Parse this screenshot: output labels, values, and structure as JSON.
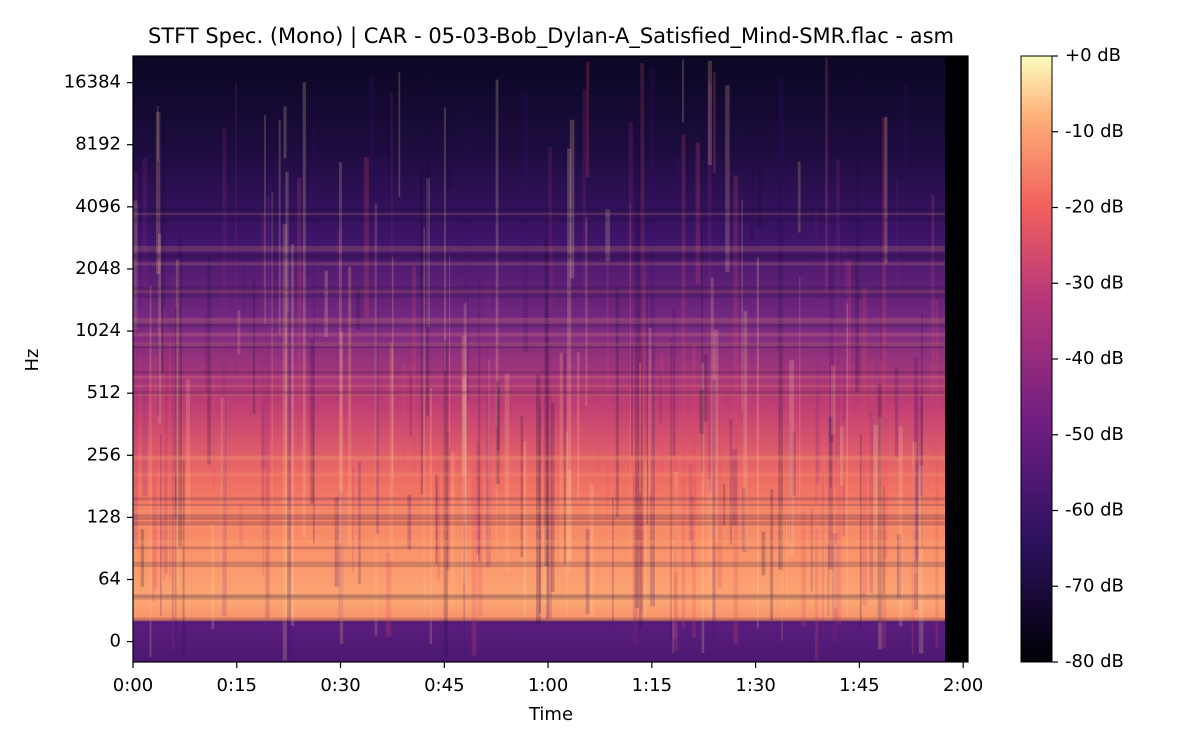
{
  "chart_data": {
    "type": "spectrogram",
    "title": "STFT Spec. (Mono) | CAR - 05-03-Bob_Dylan-A_Satisfied_Mind-SMR.flac - asm",
    "x_label": "Time",
    "y_label": "Hz",
    "xlim": [
      0,
      120.7
    ],
    "xticks": [
      {
        "value": 0,
        "label": "0:00"
      },
      {
        "value": 15,
        "label": "0:15"
      },
      {
        "value": 30,
        "label": "0:30"
      },
      {
        "value": 45,
        "label": "0:45"
      },
      {
        "value": 60,
        "label": "1:00"
      },
      {
        "value": 75,
        "label": "1:15"
      },
      {
        "value": 90,
        "label": "1:30"
      },
      {
        "value": 105,
        "label": "1:45"
      },
      {
        "value": 120,
        "label": "2:00"
      }
    ],
    "yscale": "symlog",
    "linthresh": 64,
    "ylim": [
      -21,
      22050
    ],
    "yticks": [
      0,
      64,
      128,
      256,
      512,
      1024,
      2048,
      4096,
      8192,
      16384
    ],
    "colorbar_lim": [
      -80,
      0
    ],
    "colorbar_ticks": [
      {
        "value": 0,
        "label": "+0 dB"
      },
      {
        "value": -10,
        "label": "-10 dB"
      },
      {
        "value": -20,
        "label": "-20 dB"
      },
      {
        "value": -30,
        "label": "-30 dB"
      },
      {
        "value": -40,
        "label": "-40 dB"
      },
      {
        "value": -50,
        "label": "-50 dB"
      },
      {
        "value": -60,
        "label": "-60 dB"
      },
      {
        "value": -70,
        "label": "-70 dB"
      },
      {
        "value": -80,
        "label": "-80 dB"
      }
    ]
  }
}
